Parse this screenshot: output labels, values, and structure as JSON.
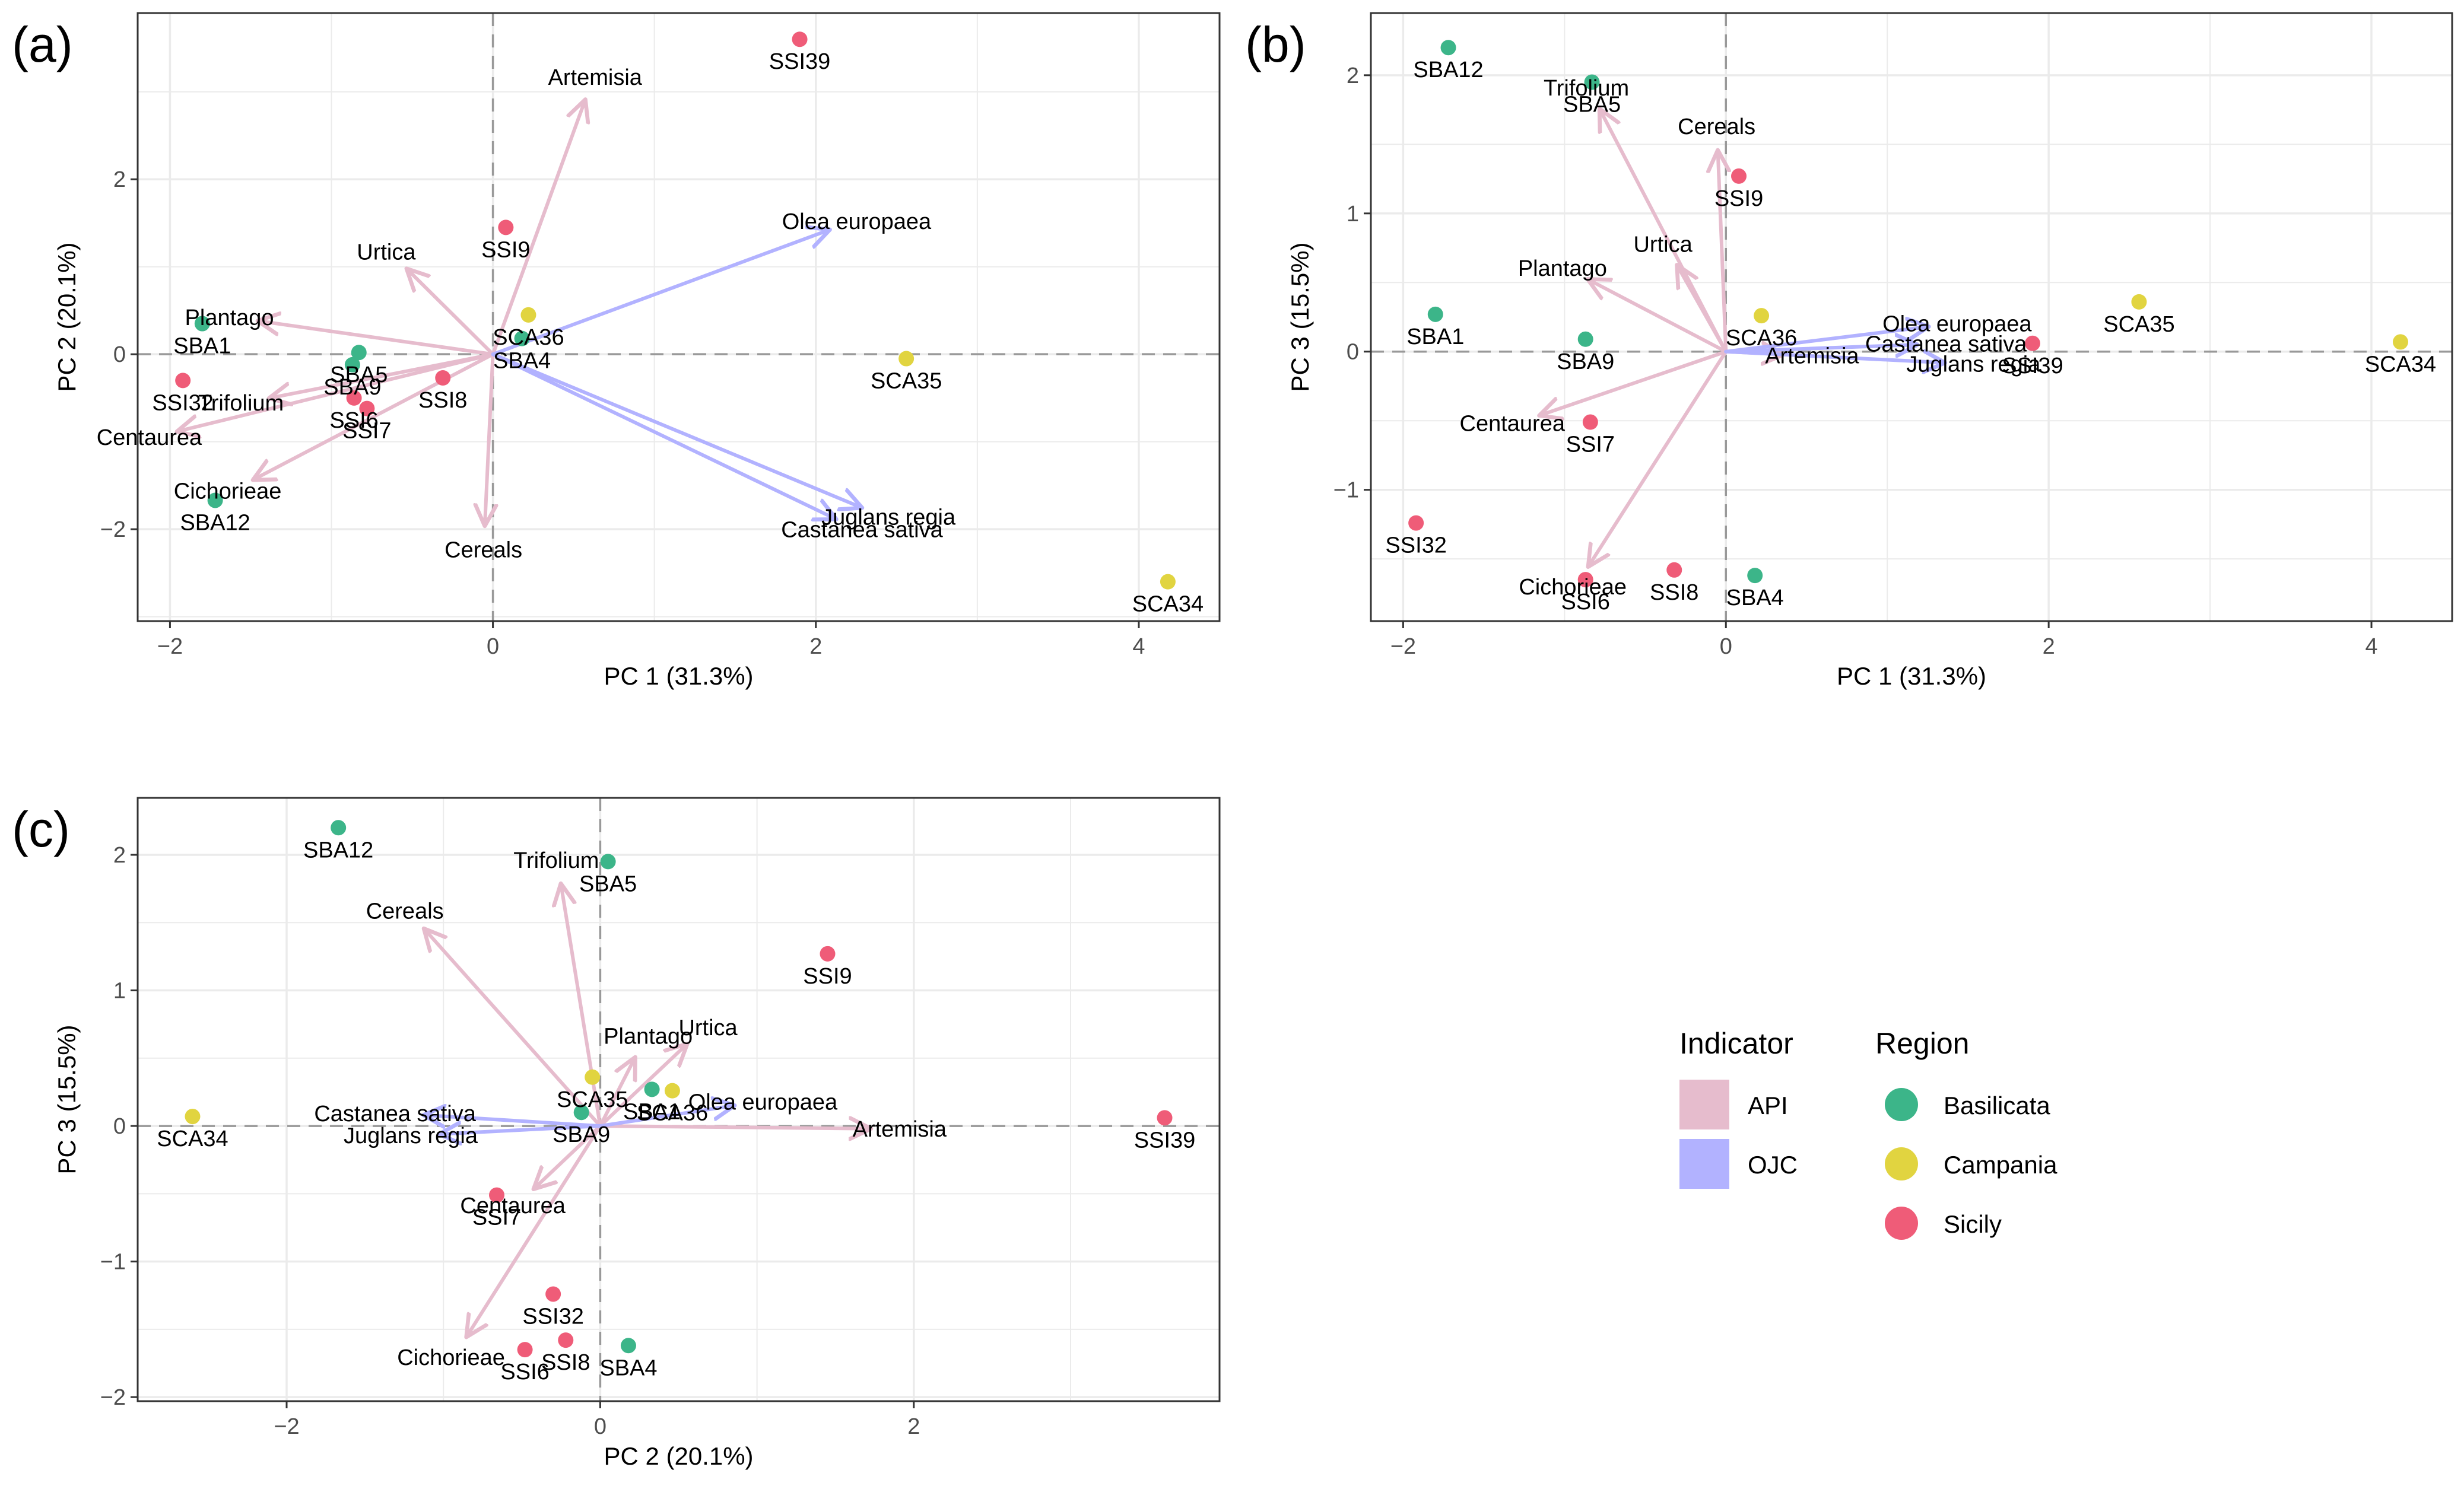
{
  "colors": {
    "api": "#e6bccd",
    "ojc": "#b2b2ff",
    "Basilicata": "#3cb589",
    "Campania": "#e1d440",
    "Sicily": "#ef5c78",
    "grid": "#ebebeb",
    "panel_border": "#333333",
    "zero_line": "#999999"
  },
  "legend": {
    "indicator_title": "Indicator",
    "indicator_items": [
      {
        "label": "API",
        "color": "#e6bccd"
      },
      {
        "label": "OJC",
        "color": "#b2b2ff"
      }
    ],
    "region_title": "Region",
    "region_items": [
      {
        "label": "Basilicata",
        "color": "#3cb589"
      },
      {
        "label": "Campania",
        "color": "#e1d440"
      },
      {
        "label": "Sicily",
        "color": "#ef5c78"
      }
    ]
  },
  "chart_data": [
    {
      "type": "scatter",
      "panel_label": "(a)",
      "xlabel": "PC 1 (31.3%)",
      "ylabel": "PC 2 (20.1%)",
      "xlim": [
        -2.2,
        4.5
      ],
      "ylim": [
        -3.05,
        3.9
      ],
      "xticks": [
        -2,
        0,
        2,
        4
      ],
      "xtick_labels": [
        "−2",
        "0",
        "2",
        "4"
      ],
      "yticks": [
        -2,
        0,
        2
      ],
      "ytick_labels": [
        "−2",
        "0",
        "2"
      ],
      "points": [
        {
          "label": "SSI39",
          "region": "Sicily",
          "x": 1.9,
          "y": 3.6
        },
        {
          "label": "SSI9",
          "region": "Sicily",
          "x": 0.08,
          "y": 1.45
        },
        {
          "label": "SBA1",
          "region": "Basilicata",
          "x": -1.8,
          "y": 0.35
        },
        {
          "label": "SBA5",
          "region": "Basilicata",
          "x": -0.83,
          "y": 0.02
        },
        {
          "label": "SBA9",
          "region": "Basilicata",
          "x": -0.87,
          "y": -0.12
        },
        {
          "label": "SSI6",
          "region": "Sicily",
          "x": -0.86,
          "y": -0.5
        },
        {
          "label": "SSI7",
          "region": "Sicily",
          "x": -0.78,
          "y": -0.62
        },
        {
          "label": "SSI8",
          "region": "Sicily",
          "x": -0.31,
          "y": -0.27
        },
        {
          "label": "SSI32",
          "region": "Sicily",
          "x": -1.92,
          "y": -0.3
        },
        {
          "label": "SBA12",
          "region": "Basilicata",
          "x": -1.72,
          "y": -1.67
        },
        {
          "label": "SCA36",
          "region": "Campania",
          "x": 0.22,
          "y": 0.45
        },
        {
          "label": "SBA4",
          "region": "Basilicata",
          "x": 0.18,
          "y": 0.18
        },
        {
          "label": "SCA35",
          "region": "Campania",
          "x": 2.56,
          "y": -0.05
        },
        {
          "label": "SCA34",
          "region": "Campania",
          "x": 4.18,
          "y": -2.6
        }
      ],
      "arrows": [
        {
          "label": "Artemisia",
          "group": "API",
          "x": 0.57,
          "y": 2.9
        },
        {
          "label": "Urtica",
          "group": "API",
          "x": -0.53,
          "y": 0.97
        },
        {
          "label": "Plantago",
          "group": "API",
          "x": -1.45,
          "y": 0.38
        },
        {
          "label": "Trifolium",
          "group": "API",
          "x": -1.38,
          "y": -0.5
        },
        {
          "label": "Centaurea",
          "group": "API",
          "x": -1.95,
          "y": -0.88
        },
        {
          "label": "Cichorieae",
          "group": "API",
          "x": -1.48,
          "y": -1.43
        },
        {
          "label": "Cereals",
          "group": "API",
          "x": -0.05,
          "y": -1.95
        },
        {
          "label": "Olea europaea",
          "group": "OJC",
          "x": 2.08,
          "y": 1.42
        },
        {
          "label": "Juglans regia",
          "group": "OJC",
          "x": 2.28,
          "y": -1.75
        },
        {
          "label": "Castanea sativa",
          "group": "OJC",
          "x": 2.12,
          "y": -1.88
        }
      ]
    },
    {
      "type": "scatter",
      "panel_label": "(b)",
      "xlabel": "PC 1 (31.3%)",
      "ylabel": "PC 3 (15.5%)",
      "xlim": [
        -2.2,
        4.5
      ],
      "ylim": [
        -1.95,
        2.45
      ],
      "xticks": [
        -2,
        0,
        2,
        4
      ],
      "xtick_labels": [
        "−2",
        "0",
        "2",
        "4"
      ],
      "yticks": [
        -1,
        0,
        1,
        2
      ],
      "ytick_labels": [
        "−1",
        "0",
        "1",
        "2"
      ],
      "points": [
        {
          "label": "SBA12",
          "region": "Basilicata",
          "x": -1.72,
          "y": 2.2
        },
        {
          "label": "SBA5",
          "region": "Basilicata",
          "x": -0.83,
          "y": 1.95
        },
        {
          "label": "SSI9",
          "region": "Sicily",
          "x": 0.08,
          "y": 1.27
        },
        {
          "label": "SBA1",
          "region": "Basilicata",
          "x": -1.8,
          "y": 0.27
        },
        {
          "label": "SBA9",
          "region": "Basilicata",
          "x": -0.87,
          "y": 0.09
        },
        {
          "label": "SCA36",
          "region": "Campania",
          "x": 0.22,
          "y": 0.26
        },
        {
          "label": "SSI39",
          "region": "Sicily",
          "x": 1.9,
          "y": 0.06
        },
        {
          "label": "SCA35",
          "region": "Campania",
          "x": 2.56,
          "y": 0.36
        },
        {
          "label": "SCA34",
          "region": "Campania",
          "x": 4.18,
          "y": 0.07
        },
        {
          "label": "SSI7",
          "region": "Sicily",
          "x": -0.84,
          "y": -0.51
        },
        {
          "label": "SSI32",
          "region": "Sicily",
          "x": -1.92,
          "y": -1.24
        },
        {
          "label": "SSI6",
          "region": "Sicily",
          "x": -0.87,
          "y": -1.65
        },
        {
          "label": "SSI8",
          "region": "Sicily",
          "x": -0.32,
          "y": -1.58
        },
        {
          "label": "SBA4",
          "region": "Basilicata",
          "x": 0.18,
          "y": -1.62
        }
      ],
      "arrows": [
        {
          "label": "Trifolium",
          "group": "API",
          "x": -0.78,
          "y": 1.75
        },
        {
          "label": "Cereals",
          "group": "API",
          "x": -0.05,
          "y": 1.45
        },
        {
          "label": "Urtica",
          "group": "API",
          "x": -0.3,
          "y": 0.62
        },
        {
          "label": "Plantago",
          "group": "API",
          "x": -0.85,
          "y": 0.52
        },
        {
          "label": "Centaurea",
          "group": "API",
          "x": -1.15,
          "y": -0.46
        },
        {
          "label": "Cichorieae",
          "group": "API",
          "x": -0.85,
          "y": -1.55
        },
        {
          "label": "Artemisia",
          "group": "API",
          "x": 0.35,
          "y": -0.02
        },
        {
          "label": "Olea europaea",
          "group": "OJC",
          "x": 1.25,
          "y": 0.18
        },
        {
          "label": "Castanea sativa",
          "group": "OJC",
          "x": 1.18,
          "y": 0.05
        },
        {
          "label": "Juglans regia",
          "group": "OJC",
          "x": 1.35,
          "y": -0.08
        }
      ]
    },
    {
      "type": "scatter",
      "panel_label": "(c)",
      "xlabel": "PC 2 (20.1%)",
      "ylabel": "PC 3 (15.5%)",
      "xlim": [
        -2.95,
        3.95
      ],
      "ylim": [
        -2.03,
        2.42
      ],
      "xticks": [
        -2,
        0,
        2
      ],
      "xtick_labels": [
        "−2",
        "0",
        "2"
      ],
      "yticks": [
        -2,
        -1,
        0,
        1,
        2
      ],
      "ytick_labels": [
        "−2",
        "−1",
        "0",
        "1",
        "2"
      ],
      "points": [
        {
          "label": "SBA12",
          "region": "Basilicata",
          "x": -1.67,
          "y": 2.2
        },
        {
          "label": "SBA5",
          "region": "Basilicata",
          "x": 0.05,
          "y": 1.95
        },
        {
          "label": "SSI9",
          "region": "Sicily",
          "x": 1.45,
          "y": 1.27
        },
        {
          "label": "SCA35",
          "region": "Campania",
          "x": -0.05,
          "y": 0.36
        },
        {
          "label": "SBA1",
          "region": "Basilicata",
          "x": 0.33,
          "y": 0.27
        },
        {
          "label": "SCA36",
          "region": "Campania",
          "x": 0.46,
          "y": 0.26
        },
        {
          "label": "SBA9",
          "region": "Basilicata",
          "x": -0.12,
          "y": 0.1
        },
        {
          "label": "SCA34",
          "region": "Campania",
          "x": -2.6,
          "y": 0.07
        },
        {
          "label": "SSI39",
          "region": "Sicily",
          "x": 3.6,
          "y": 0.06
        },
        {
          "label": "SSI7",
          "region": "Sicily",
          "x": -0.66,
          "y": -0.51
        },
        {
          "label": "SSI32",
          "region": "Sicily",
          "x": -0.3,
          "y": -1.24
        },
        {
          "label": "SSI8",
          "region": "Sicily",
          "x": -0.22,
          "y": -1.58
        },
        {
          "label": "SSI6",
          "region": "Sicily",
          "x": -0.48,
          "y": -1.65
        },
        {
          "label": "SBA4",
          "region": "Basilicata",
          "x": 0.18,
          "y": -1.62
        }
      ],
      "arrows": [
        {
          "label": "Trifolium",
          "group": "API",
          "x": -0.25,
          "y": 1.78
        },
        {
          "label": "Cereals",
          "group": "API",
          "x": -1.12,
          "y": 1.45
        },
        {
          "label": "Urtica",
          "group": "API",
          "x": 0.55,
          "y": 0.6
        },
        {
          "label": "Plantago",
          "group": "API",
          "x": 0.22,
          "y": 0.5
        },
        {
          "label": "Artemisia",
          "group": "API",
          "x": 1.72,
          "y": -0.02
        },
        {
          "label": "Centaurea",
          "group": "API",
          "x": -0.42,
          "y": -0.46
        },
        {
          "label": "Cichorieae",
          "group": "API",
          "x": -0.85,
          "y": -1.55
        },
        {
          "label": "Olea europaea",
          "group": "OJC",
          "x": 0.85,
          "y": 0.15
        },
        {
          "label": "Castanea sativa",
          "group": "OJC",
          "x": -1.12,
          "y": 0.08
        },
        {
          "label": "Juglans regia",
          "group": "OJC",
          "x": -1.02,
          "y": -0.06
        }
      ]
    }
  ]
}
